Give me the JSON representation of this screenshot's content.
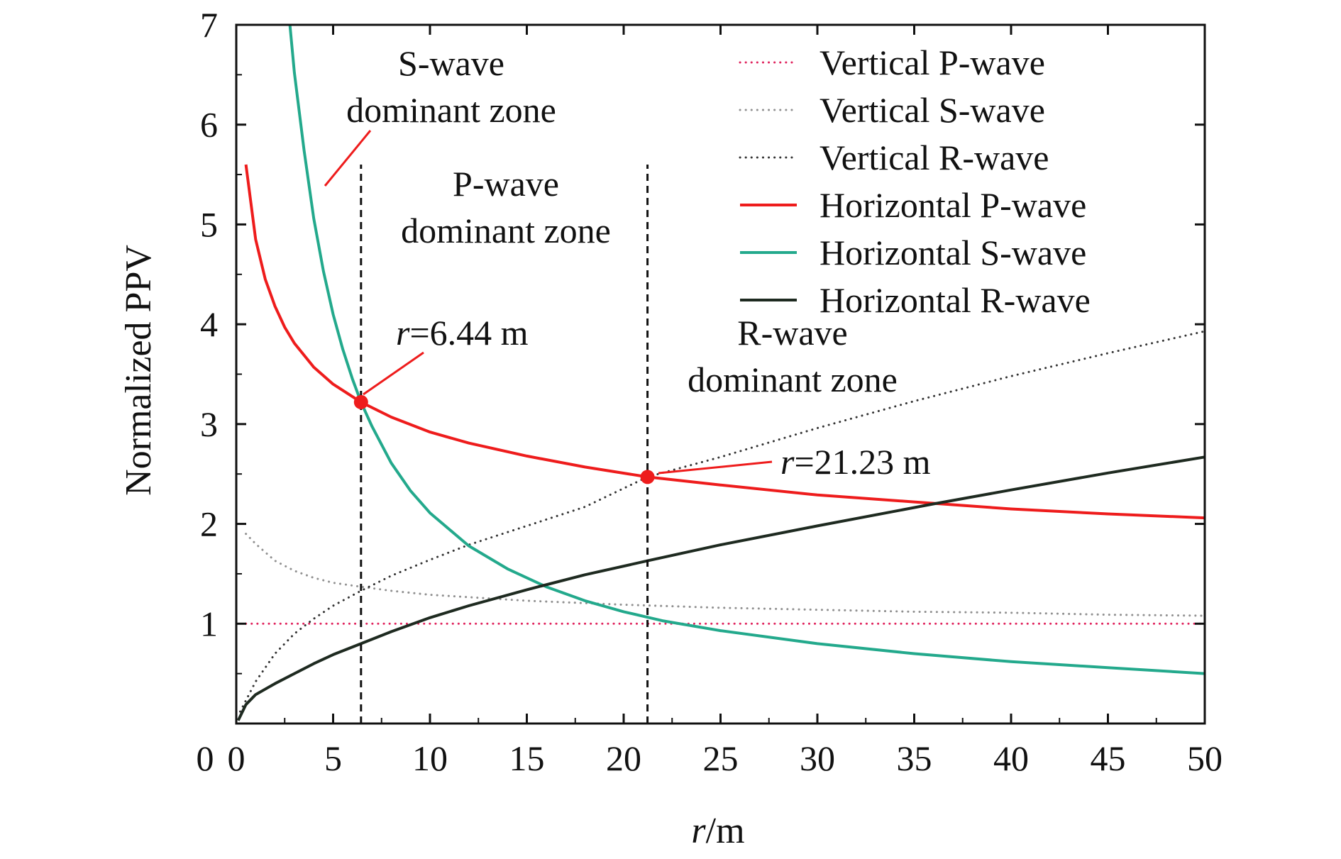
{
  "chart_data": {
    "type": "line",
    "xlabel": {
      "italic": "r",
      "rest": "/m"
    },
    "ylabel": "Normalized PPV",
    "xlim": [
      0,
      50
    ],
    "ylim": [
      0,
      7
    ],
    "x_ticks": [
      0,
      5,
      10,
      15,
      20,
      25,
      30,
      35,
      40,
      45,
      50
    ],
    "y_ticks": [
      1,
      2,
      3,
      4,
      5,
      6,
      7
    ],
    "grid": false,
    "legend_position": "top-right",
    "series": [
      {
        "name": "Vertical P-wave",
        "style": "dotted",
        "color": "#e0245e",
        "x": [
          0.5,
          10,
          20,
          30,
          40,
          50
        ],
        "y": [
          1.0,
          1.0,
          1.0,
          1.0,
          1.0,
          1.0
        ]
      },
      {
        "name": "Vertical S-wave",
        "style": "dotted",
        "color": "#909090",
        "x": [
          0.5,
          1,
          2,
          3,
          4,
          5,
          6.44,
          8,
          10,
          15,
          20,
          25,
          30,
          35,
          40,
          45,
          50
        ],
        "y": [
          1.9,
          1.8,
          1.63,
          1.53,
          1.46,
          1.41,
          1.37,
          1.33,
          1.29,
          1.23,
          1.19,
          1.16,
          1.14,
          1.12,
          1.11,
          1.09,
          1.08
        ]
      },
      {
        "name": "Vertical R-wave",
        "style": "dotted",
        "color": "#333333",
        "x": [
          0.2,
          1,
          2,
          3,
          4,
          5,
          6.44,
          8,
          10,
          12,
          15,
          18,
          21.23,
          25,
          30,
          35,
          40,
          45,
          50
        ],
        "y": [
          0.12,
          0.42,
          0.7,
          0.9,
          1.05,
          1.18,
          1.33,
          1.48,
          1.64,
          1.79,
          1.98,
          2.17,
          2.47,
          2.67,
          2.96,
          3.23,
          3.48,
          3.71,
          3.93
        ]
      },
      {
        "name": "Horizontal P-wave",
        "style": "solid",
        "color": "#ee1c1c",
        "x": [
          0.5,
          1,
          1.5,
          2,
          2.5,
          3,
          4,
          5,
          6.44,
          8,
          10,
          12,
          15,
          18,
          21.23,
          25,
          30,
          35,
          40,
          45,
          50
        ],
        "y": [
          5.6,
          4.85,
          4.45,
          4.18,
          3.97,
          3.81,
          3.57,
          3.4,
          3.22,
          3.07,
          2.92,
          2.81,
          2.68,
          2.57,
          2.47,
          2.39,
          2.29,
          2.22,
          2.15,
          2.1,
          2.06
        ]
      },
      {
        "name": "Horizontal S-wave",
        "style": "solid",
        "color": "#23a98c",
        "x": [
          2.77,
          3,
          3.5,
          4,
          4.5,
          5,
          5.5,
          6,
          6.44,
          7,
          8,
          9,
          10,
          12,
          14,
          16,
          18,
          20,
          22,
          25,
          30,
          35,
          40,
          45,
          50
        ],
        "y": [
          7.0,
          6.52,
          5.74,
          5.06,
          4.53,
          4.1,
          3.75,
          3.45,
          3.22,
          2.98,
          2.61,
          2.33,
          2.11,
          1.78,
          1.55,
          1.37,
          1.23,
          1.12,
          1.03,
          0.93,
          0.8,
          0.7,
          0.62,
          0.56,
          0.5
        ]
      },
      {
        "name": "Horizontal R-wave",
        "style": "solid",
        "color": "#1e2a20",
        "x": [
          0.1,
          0.5,
          1,
          2,
          3,
          4,
          5,
          6.44,
          8,
          10,
          12,
          15,
          18,
          21.23,
          25,
          30,
          36,
          40,
          45,
          50
        ],
        "y": [
          0.03,
          0.19,
          0.29,
          0.4,
          0.5,
          0.6,
          0.69,
          0.8,
          0.92,
          1.06,
          1.18,
          1.34,
          1.49,
          1.63,
          1.79,
          1.98,
          2.2,
          2.34,
          2.51,
          2.67
        ]
      }
    ],
    "markers": [
      {
        "x": 6.44,
        "y": 3.22,
        "color": "#ee1c1c"
      },
      {
        "x": 21.23,
        "y": 2.47,
        "color": "#ee1c1c"
      }
    ],
    "vlines": [
      {
        "x": 6.44,
        "y_from": 0,
        "y_to": 5.6
      },
      {
        "x": 21.23,
        "y_from": 0,
        "y_to": 5.6
      }
    ],
    "annotations": {
      "s_zone_1": "S-wave",
      "s_zone_2": "dominant zone",
      "p_zone_1": "P-wave",
      "p_zone_2": "dominant zone",
      "r_zone_1": "R-wave",
      "r_zone_2": "dominant zone",
      "pt1_var": "r",
      "pt1_val": "=6.44 m",
      "pt2_var": "r",
      "pt2_val": "=21.23 m"
    }
  }
}
